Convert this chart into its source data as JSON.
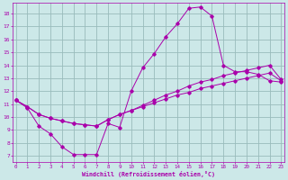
{
  "xlabel": "Windchill (Refroidissement éolien,°C)",
  "bg_color": "#cce8e8",
  "line_color": "#aa00aa",
  "grid_color": "#99bbbb",
  "x_ticks": [
    0,
    1,
    2,
    3,
    4,
    5,
    6,
    7,
    8,
    9,
    10,
    11,
    12,
    13,
    14,
    15,
    16,
    17,
    18,
    19,
    20,
    21,
    22,
    23
  ],
  "y_ticks": [
    7,
    8,
    9,
    10,
    11,
    12,
    13,
    14,
    15,
    16,
    17,
    18
  ],
  "xlim": [
    -0.3,
    23.3
  ],
  "ylim": [
    6.5,
    18.8
  ],
  "curve1_x": [
    0,
    1,
    2,
    3,
    4,
    5,
    6,
    7,
    8,
    9,
    10,
    11,
    12,
    13,
    14,
    15,
    16,
    17,
    18,
    19,
    20,
    21,
    22,
    23
  ],
  "curve1_y": [
    11.3,
    10.7,
    9.3,
    8.7,
    7.7,
    7.1,
    7.1,
    7.1,
    9.5,
    9.2,
    12.0,
    13.8,
    14.9,
    16.2,
    17.2,
    18.4,
    18.5,
    17.8,
    14.0,
    13.5,
    13.5,
    13.3,
    12.8,
    12.7
  ],
  "curve2_x": [
    0,
    1,
    2,
    3,
    4,
    5,
    6,
    7,
    8,
    9,
    10,
    11,
    12,
    13,
    14,
    15,
    16,
    17,
    18,
    19,
    20,
    21,
    22,
    23
  ],
  "curve2_y": [
    11.3,
    10.8,
    10.2,
    9.9,
    9.7,
    9.5,
    9.4,
    9.3,
    9.8,
    10.2,
    10.5,
    10.8,
    11.1,
    11.4,
    11.7,
    11.9,
    12.2,
    12.4,
    12.6,
    12.8,
    13.0,
    13.2,
    13.4,
    12.8
  ],
  "curve3_x": [
    0,
    1,
    2,
    3,
    4,
    5,
    6,
    7,
    8,
    9,
    10,
    11,
    12,
    13,
    14,
    15,
    16,
    17,
    18,
    19,
    20,
    21,
    22,
    23
  ],
  "curve3_y": [
    11.3,
    10.8,
    10.2,
    9.9,
    9.7,
    9.5,
    9.4,
    9.3,
    9.8,
    10.2,
    10.5,
    10.9,
    11.3,
    11.7,
    12.0,
    12.4,
    12.7,
    12.9,
    13.2,
    13.4,
    13.6,
    13.8,
    14.0,
    12.9
  ]
}
